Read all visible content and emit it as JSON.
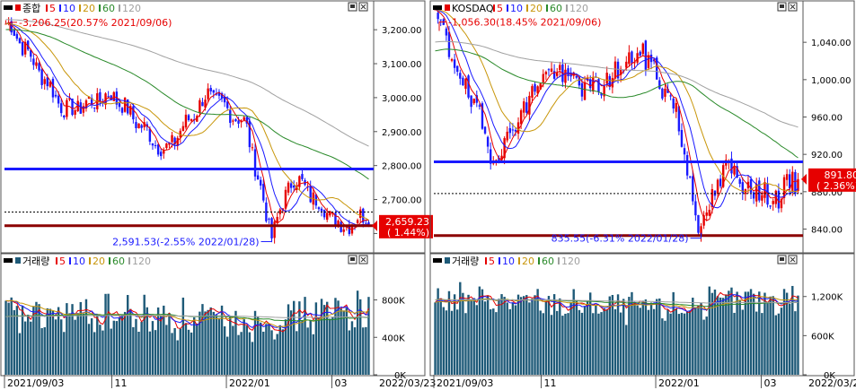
{
  "colors": {
    "up": "#e60000",
    "down": "#1a1aff",
    "ma5": "#e60000",
    "ma10": "#1a1aff",
    "ma20": "#c8960a",
    "ma60": "#2a8a2a",
    "ma120": "#a0a0a0",
    "volume_bar": "#1e5a78",
    "support_line": "#8b0000",
    "resistance_line": "#1a1aff",
    "marker_bg": "#e60000"
  },
  "panels": [
    {
      "id": "kospi",
      "price": {
        "legend": [
          "종합",
          "5",
          "10",
          "20",
          "60",
          "120"
        ],
        "high_annotation": "3,206.25(20.57% 2021/09/06)",
        "low_annotation": "2,591.53(-2.55% 2022/01/28)",
        "current_value": "2,659.23",
        "current_pct": "( 1.44%)",
        "axis_ticks": [
          "3,200.00",
          "3,100.00",
          "3,000.00",
          "2,900.00",
          "2,800.00",
          "2,700.00",
          "2,600.00"
        ],
        "ylim": [
          2580,
          3240
        ]
      },
      "volume": {
        "legend": [
          "거래량",
          "5",
          "10",
          "20",
          "60",
          "120"
        ],
        "axis_ticks": [
          "800K",
          "400K",
          "0K"
        ],
        "ylim": [
          0,
          1150
        ]
      },
      "xaxis": {
        "labels": [
          "2021/09/03",
          "11",
          "2022/01",
          "03"
        ],
        "end_label": "2022/03/23"
      }
    },
    {
      "id": "kosdaq",
      "price": {
        "legend": [
          "KOSDAQ",
          "5",
          "10",
          "20",
          "60",
          "120"
        ],
        "high_annotation": "1,056.30(18.45% 2021/09/06)",
        "low_annotation": "835.55(-6.31% 2022/01/28)",
        "current_value": "891.80",
        "current_pct": "( 2.36%)",
        "axis_ticks": [
          "1,040.00",
          "1,000.00",
          "960.00",
          "920.00",
          "880.00",
          "840.00"
        ],
        "ylim": [
          828,
          1068
        ]
      },
      "volume": {
        "legend": [
          "거래량",
          "5",
          "10",
          "20",
          "60",
          "120"
        ],
        "axis_ticks": [
          "1,200K",
          "600K",
          "0K"
        ],
        "ylim": [
          0,
          1650
        ]
      },
      "xaxis": {
        "labels": [
          "2021/09/03",
          "11",
          "2022/01",
          "03"
        ],
        "end_label": "2022/03/23"
      }
    }
  ],
  "chart_data": [
    {
      "type": "line",
      "title": "종합",
      "xlabel": "",
      "ylabel": "",
      "x_range": [
        "2021/09/03",
        "2022/03/23"
      ],
      "ylim": [
        2580,
        3240
      ],
      "series": [
        {
          "name": "종합",
          "x": [
            "2021/09/06",
            "2021/10/06",
            "2021/11/01",
            "2021/11/30",
            "2021/12/24",
            "2022/01/14",
            "2022/01/28",
            "2022/02/09",
            "2022/03/08",
            "2022/03/23"
          ],
          "values": [
            3206,
            2960,
            3010,
            2840,
            3010,
            2920,
            2592,
            2770,
            2620,
            2659
          ]
        }
      ],
      "annotations": [
        "3,206.25(20.57% 2021/09/06)",
        "2,591.53(-2.55% 2022/01/28)"
      ]
    },
    {
      "type": "bar",
      "title": "거래량",
      "xlabel": "",
      "ylabel": "",
      "x_range": [
        "2021/09/03",
        "2022/03/23"
      ],
      "ylim": [
        0,
        1150
      ],
      "series": [
        {
          "name": "거래량",
          "x": [
            "2021/09/03",
            "2021/11/01",
            "2022/01/03",
            "2022/03/23"
          ],
          "values": [
            620,
            640,
            560,
            700
          ]
        }
      ]
    },
    {
      "type": "line",
      "title": "KOSDAQ",
      "xlabel": "",
      "ylabel": "",
      "x_range": [
        "2021/09/03",
        "2022/03/23"
      ],
      "ylim": [
        828,
        1068
      ],
      "series": [
        {
          "name": "KOSDAQ",
          "x": [
            "2021/09/06",
            "2021/10/06",
            "2021/11/03",
            "2021/12/01",
            "2021/12/27",
            "2022/01/14",
            "2022/01/28",
            "2022/02/10",
            "2022/03/08",
            "2022/03/23"
          ],
          "values": [
            1056,
            915,
            1010,
            990,
            1030,
            970,
            836,
            905,
            872,
            892
          ]
        }
      ],
      "annotations": [
        "1,056.30(18.45% 2021/09/06)",
        "835.55(-6.31% 2022/01/28)"
      ]
    },
    {
      "type": "bar",
      "title": "거래량",
      "xlabel": "",
      "ylabel": "",
      "x_range": [
        "2021/09/03",
        "2022/03/23"
      ],
      "ylim": [
        0,
        1650
      ],
      "series": [
        {
          "name": "거래량",
          "x": [
            "2021/09/03",
            "2021/11/01",
            "2022/01/03",
            "2022/03/23"
          ],
          "values": [
            1150,
            1100,
            1000,
            1200
          ]
        }
      ]
    }
  ]
}
